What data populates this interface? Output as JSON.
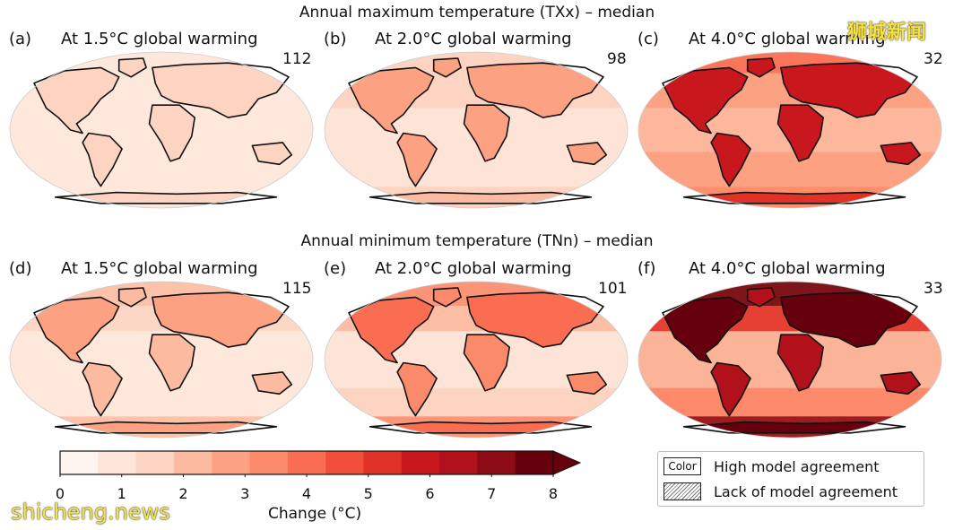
{
  "rows": [
    {
      "title": "Annual maximum temperature (TXx) – median",
      "panels": [
        {
          "letter": "(a)",
          "title": "At 1.5°C global warming",
          "count": "112",
          "intensity": 0.18
        },
        {
          "letter": "(b)",
          "title": "At 2.0°C global warming",
          "count": "98",
          "intensity": 0.28
        },
        {
          "letter": "(c)",
          "title": "At 4.0°C global warming",
          "count": "32",
          "intensity": 0.62
        }
      ]
    },
    {
      "title": "Annual minimum temperature (TNn) – median",
      "panels": [
        {
          "letter": "(d)",
          "title": "At 1.5°C global warming",
          "count": "115",
          "intensity": 0.22
        },
        {
          "letter": "(e)",
          "title": "At 2.0°C global warming",
          "count": "101",
          "intensity": 0.34
        },
        {
          "letter": "(f)",
          "title": "At 4.0°C global warming",
          "count": "33",
          "intensity": 0.7
        }
      ]
    }
  ],
  "colorbar": {
    "ticks": [
      "0",
      "1",
      "2",
      "3",
      "4",
      "5",
      "6",
      "7",
      "8"
    ],
    "label": "Change (°C)",
    "range": [
      0,
      8
    ],
    "colors": [
      "#fff5f0",
      "#fee6da",
      "#fdd3c1",
      "#fcbba1",
      "#fca282",
      "#fb8a6a",
      "#f96d52",
      "#f14f3a",
      "#e13228",
      "#c9181d",
      "#b0111a",
      "#8c0b14",
      "#67000d"
    ]
  },
  "legend": {
    "swatch_label": "Color",
    "items": [
      {
        "label": "High model agreement"
      },
      {
        "label": "Lack of model agreement"
      }
    ]
  },
  "watermarks": {
    "top_right": "狮城新闻",
    "bottom_left": "shicheng.news"
  }
}
